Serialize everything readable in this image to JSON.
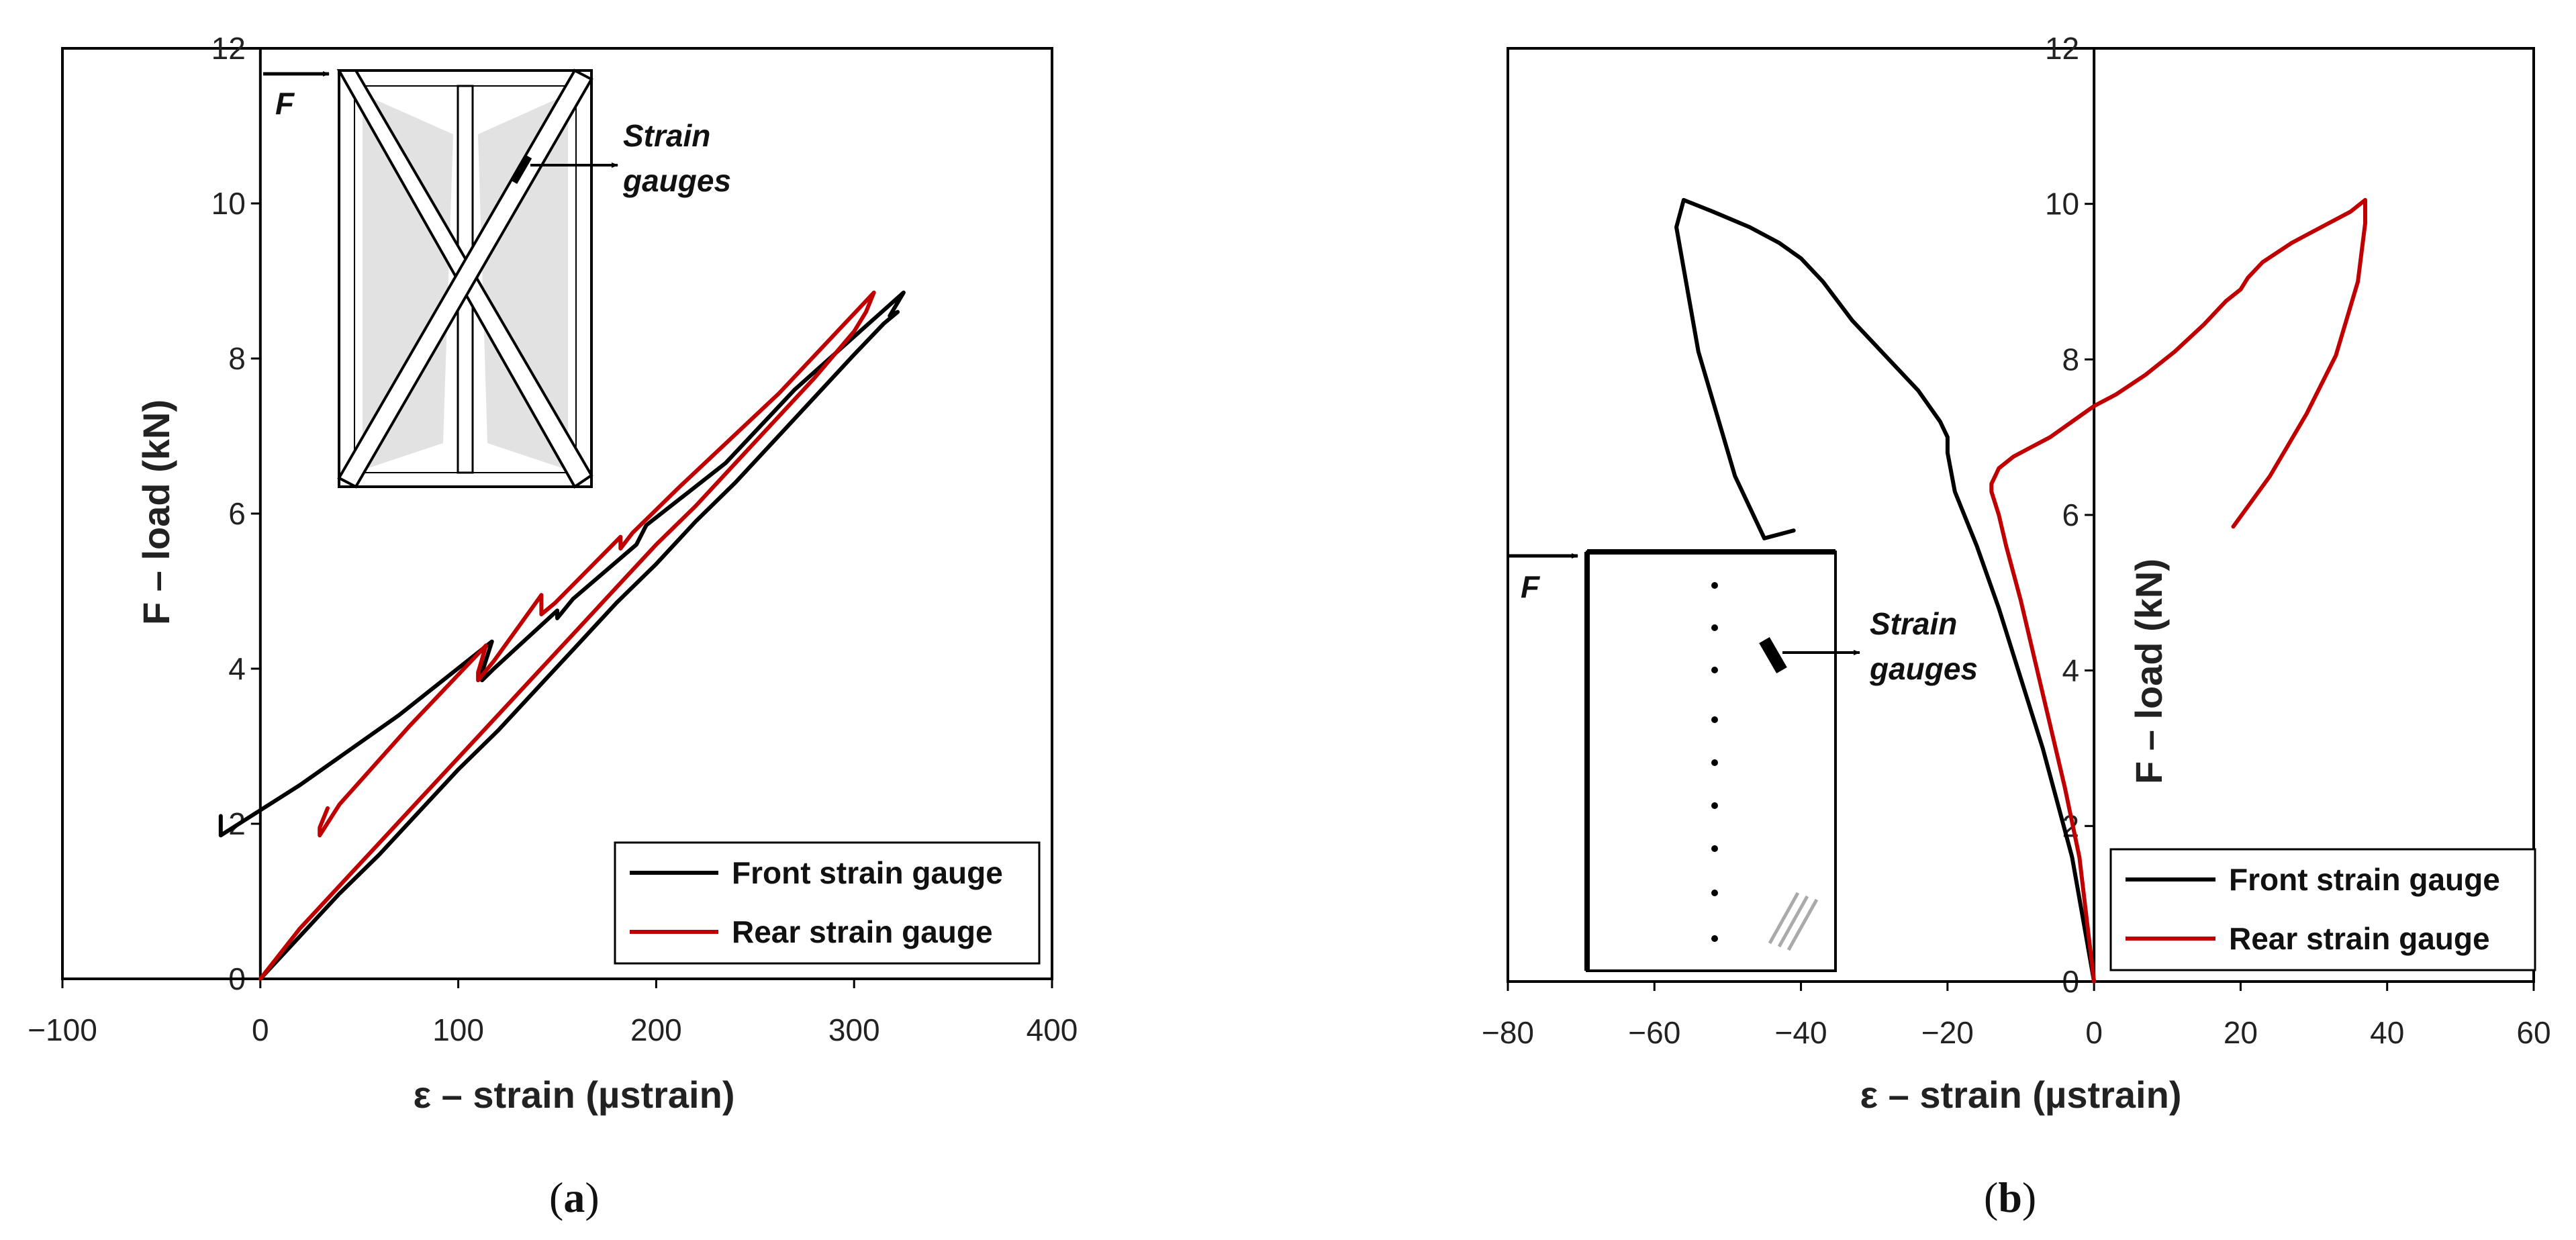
{
  "chart_data": [
    {
      "type": "line",
      "panel_label": "a",
      "xlabel": "ε – strain (µstrain)",
      "ylabel": "F – load (kN)",
      "xlim": [
        -100,
        400
      ],
      "ylim": [
        0,
        12
      ],
      "xticks": [
        "−100",
        "0",
        "100",
        "200",
        "300",
        "400"
      ],
      "yticks": [
        "0",
        "2",
        "4",
        "6",
        "8",
        "10",
        "12"
      ],
      "grid": false,
      "legend_position": "bottom-right",
      "series": [
        {
          "name": "Front strain gauge",
          "color": "#000000",
          "x": [
            0,
            20,
            40,
            60,
            80,
            100,
            120,
            140,
            160,
            180,
            200,
            220,
            240,
            260,
            280,
            300,
            315,
            322,
            318,
            325,
            270,
            235,
            195,
            190,
            158,
            150,
            150,
            118,
            112,
            112,
            117,
            70,
            20,
            -20,
            -20
          ],
          "y": [
            0,
            0.55,
            1.1,
            1.6,
            2.15,
            2.7,
            3.2,
            3.75,
            4.3,
            4.85,
            5.35,
            5.9,
            6.4,
            6.95,
            7.5,
            8.05,
            8.45,
            8.6,
            8.55,
            8.85,
            7.6,
            6.65,
            5.85,
            5.6,
            4.9,
            4.65,
            4.75,
            4.0,
            3.85,
            3.95,
            4.35,
            3.4,
            2.5,
            1.85,
            2.1
          ]
        },
        {
          "name": "Rear strain gauge",
          "color": "#c00000",
          "x": [
            0,
            20,
            40,
            60,
            80,
            100,
            120,
            140,
            160,
            180,
            200,
            220,
            240,
            260,
            280,
            300,
            306,
            310,
            262,
            212,
            188,
            182,
            182,
            149,
            142,
            142,
            118,
            110,
            110,
            114,
            75,
            40,
            30,
            30,
            34
          ],
          "y": [
            0,
            0.65,
            1.2,
            1.75,
            2.3,
            2.85,
            3.4,
            3.95,
            4.5,
            5.05,
            5.6,
            6.1,
            6.65,
            7.2,
            7.75,
            8.35,
            8.6,
            8.85,
            7.55,
            6.35,
            5.75,
            5.55,
            5.7,
            4.85,
            4.7,
            4.95,
            4.1,
            3.85,
            3.95,
            4.3,
            3.25,
            2.25,
            1.85,
            1.95,
            2.2
          ]
        }
      ],
      "inset": {
        "force_label": "F",
        "gauge_label_line1": "Strain",
        "gauge_label_line2": "gauges"
      }
    },
    {
      "type": "line",
      "panel_label": "b",
      "xlabel": "ε – strain (µstrain)",
      "ylabel": "F – load (kN)",
      "xlim": [
        -80,
        60
      ],
      "ylim": [
        0,
        12
      ],
      "xticks": [
        "−80",
        "−60",
        "−40",
        "−20",
        "0",
        "20",
        "40",
        "60"
      ],
      "yticks": [
        "0",
        "2",
        "4",
        "6",
        "8",
        "10",
        "12"
      ],
      "grid": false,
      "legend_position": "bottom-right",
      "series": [
        {
          "name": "Front strain gauge",
          "color": "#000000",
          "x": [
            0,
            -1.5,
            -3,
            -5,
            -7,
            -10,
            -13,
            -16,
            -19,
            -20,
            -20,
            -21,
            -24,
            -28,
            -33,
            -37,
            -40,
            -43,
            -47,
            -52,
            -56,
            -57,
            -54,
            -49,
            -45,
            -41
          ],
          "y": [
            0,
            0.8,
            1.6,
            2.3,
            3.0,
            3.9,
            4.8,
            5.6,
            6.3,
            6.8,
            7.0,
            7.2,
            7.6,
            8.0,
            8.5,
            9.0,
            9.3,
            9.5,
            9.7,
            9.9,
            10.05,
            9.7,
            8.1,
            6.5,
            5.7,
            5.8
          ]
        },
        {
          "name": "Rear strain gauge",
          "color": "#c00000",
          "x": [
            0,
            -1,
            -2,
            -4,
            -6,
            -8,
            -10,
            -12,
            -13,
            -14,
            -14,
            -13,
            -11,
            -9,
            -6,
            -3,
            0,
            3,
            7,
            11,
            15,
            18,
            20,
            21,
            23,
            27,
            31,
            35,
            37,
            37,
            36,
            33,
            29,
            24,
            19
          ],
          "y": [
            0,
            0.8,
            1.6,
            2.5,
            3.3,
            4.1,
            4.9,
            5.6,
            6.0,
            6.3,
            6.4,
            6.6,
            6.75,
            6.85,
            7.0,
            7.2,
            7.4,
            7.55,
            7.8,
            8.1,
            8.45,
            8.75,
            8.9,
            9.05,
            9.25,
            9.5,
            9.7,
            9.9,
            10.05,
            9.75,
            9.0,
            8.05,
            7.3,
            6.5,
            5.85
          ]
        }
      ],
      "inset": {
        "force_label": "F",
        "gauge_label_line1": "Strain",
        "gauge_label_line2": "gauges"
      }
    }
  ]
}
